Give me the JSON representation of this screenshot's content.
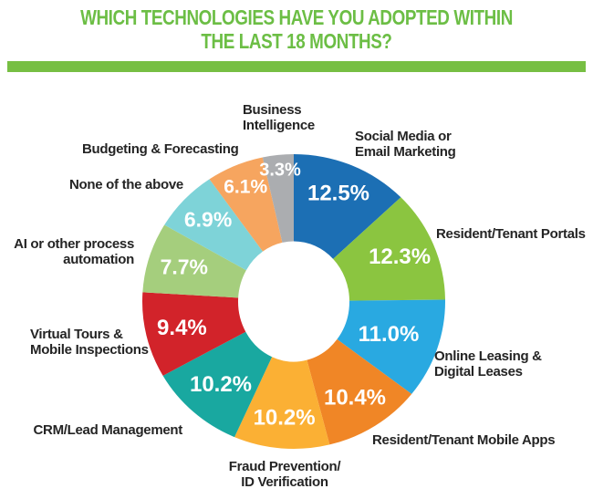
{
  "header": {
    "title": "WHICH TECHNOLOGIES HAVE YOU ADOPTED WITHIN\nTHE LAST 18 MONTHS?",
    "title_color": "#6CBE45",
    "bar_color": "#77BF43"
  },
  "chart_data": {
    "type": "pie",
    "variant": "donut",
    "title": "WHICH TECHNOLOGIES HAVE YOU ADOPTED WITHIN THE LAST 18 MONTHS?",
    "unit": "%",
    "total": 100.0,
    "start_angle_deg": 0,
    "direction": "clockwise",
    "legend_position": "labels-around-chart",
    "value_label_color": "#FFFFFF",
    "category_label_color": "#242424",
    "slices": [
      {
        "label": "Social Media or\nEmail Marketing",
        "value": 12.5,
        "display": "12.5%",
        "color": "#1C6FB4"
      },
      {
        "label": "Resident/Tenant Portals",
        "value": 12.3,
        "display": "12.3%",
        "color": "#8BC540"
      },
      {
        "label": "Online Leasing &\nDigital Leases",
        "value": 11.0,
        "display": "11.0%",
        "color": "#29A9E1"
      },
      {
        "label": "Resident/Tenant Mobile Apps",
        "value": 10.4,
        "display": "10.4%",
        "color": "#F08626"
      },
      {
        "label": "Fraud Prevention/\nID Verification",
        "value": 10.2,
        "display": "10.2%",
        "color": "#FBB034"
      },
      {
        "label": "CRM/Lead Management",
        "value": 10.2,
        "display": "10.2%",
        "color": "#19A8A0"
      },
      {
        "label": "Virtual Tours &\nMobile Inspections",
        "value": 9.4,
        "display": "9.4%",
        "color": "#D2232A"
      },
      {
        "label": "AI or other process\nautomation",
        "value": 7.7,
        "display": "7.7%",
        "color": "#A5CE7D"
      },
      {
        "label": "None of the above",
        "value": 6.9,
        "display": "6.9%",
        "color": "#7ED3D8"
      },
      {
        "label": "Budgeting & Forecasting",
        "value": 6.1,
        "display": "6.1%",
        "color": "#F6A55F"
      },
      {
        "label": "Business\nIntelligence",
        "value": 3.3,
        "display": "3.3%",
        "color": "#ABADB0"
      }
    ]
  }
}
